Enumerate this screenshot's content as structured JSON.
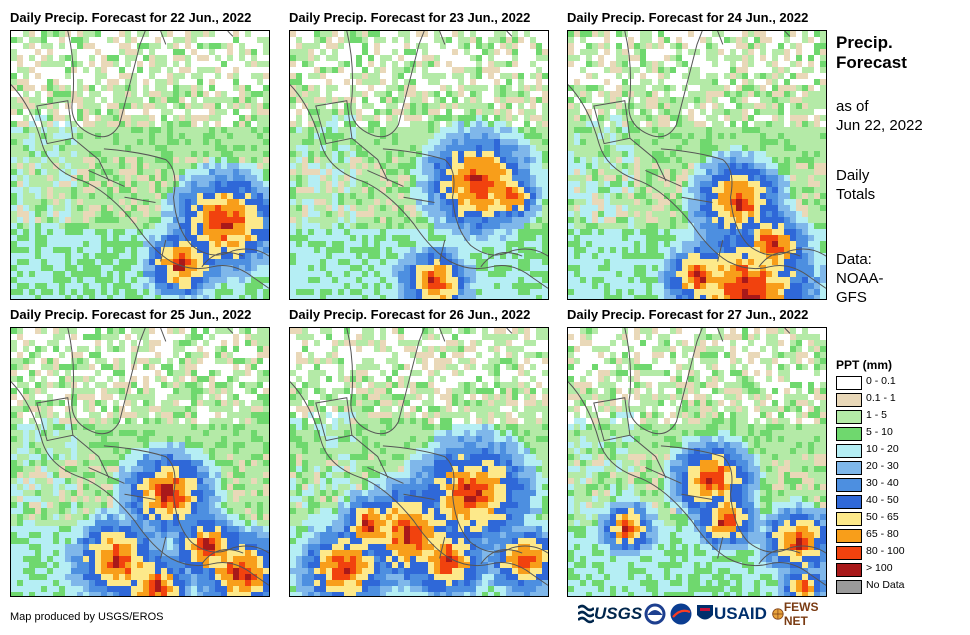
{
  "panels": [
    {
      "title": "Daily Precip. Forecast for 22 Jun., 2022",
      "hot": [
        [
          0.82,
          0.7,
          0.12
        ],
        [
          0.65,
          0.85,
          0.08
        ]
      ]
    },
    {
      "title": "Daily Precip. Forecast for 23 Jun., 2022",
      "hot": [
        [
          0.72,
          0.55,
          0.12
        ],
        [
          0.55,
          0.92,
          0.08
        ],
        [
          0.85,
          0.6,
          0.06
        ]
      ]
    },
    {
      "title": "Daily Precip. Forecast for 24 Jun., 2022",
      "hot": [
        [
          0.65,
          0.62,
          0.1
        ],
        [
          0.68,
          0.95,
          0.16
        ],
        [
          0.5,
          0.9,
          0.08
        ],
        [
          0.78,
          0.78,
          0.08
        ]
      ]
    },
    {
      "title": "Daily Precip. Forecast for 25 Jun., 2022",
      "hot": [
        [
          0.6,
          0.6,
          0.1
        ],
        [
          0.4,
          0.85,
          0.1
        ],
        [
          0.88,
          0.9,
          0.1
        ],
        [
          0.55,
          0.95,
          0.08
        ],
        [
          0.75,
          0.8,
          0.08
        ]
      ]
    },
    {
      "title": "Daily Precip. Forecast for 26 Jun., 2022",
      "hot": [
        [
          0.7,
          0.6,
          0.13
        ],
        [
          0.45,
          0.75,
          0.12
        ],
        [
          0.2,
          0.88,
          0.1
        ],
        [
          0.9,
          0.85,
          0.08
        ],
        [
          0.3,
          0.72,
          0.07
        ],
        [
          0.6,
          0.85,
          0.09
        ]
      ]
    },
    {
      "title": "Daily Precip. Forecast for 27 Jun., 2022",
      "hot": [
        [
          0.55,
          0.55,
          0.09
        ],
        [
          0.88,
          0.78,
          0.08
        ],
        [
          0.22,
          0.73,
          0.06
        ],
        [
          0.6,
          0.7,
          0.07
        ],
        [
          0.9,
          0.95,
          0.05
        ]
      ]
    }
  ],
  "side": {
    "title_line1": "Precip.",
    "title_line2": "Forecast",
    "asof_line1": "as of",
    "asof_line2": "Jun 22, 2022",
    "totals_line1": "Daily",
    "totals_line2": "Totals",
    "data_line1": "Data:",
    "data_line2": "NOAA-",
    "data_line3": "GFS"
  },
  "legend": {
    "title": "PPT (mm)",
    "items": [
      {
        "label": "0 - 0.1",
        "color": "#ffffff"
      },
      {
        "label": "0.1 - 1",
        "color": "#e9d8b8"
      },
      {
        "label": "1 - 5",
        "color": "#b4eaa7"
      },
      {
        "label": "5 - 10",
        "color": "#6fd86e"
      },
      {
        "label": "10 - 20",
        "color": "#b5eef4"
      },
      {
        "label": "20 - 30",
        "color": "#7fb7ea"
      },
      {
        "label": "30 - 40",
        "color": "#4d8fe0"
      },
      {
        "label": "40 - 50",
        "color": "#2f68d8"
      },
      {
        "label": "50 - 65",
        "color": "#fde98a"
      },
      {
        "label": "65 - 80",
        "color": "#f89e1a"
      },
      {
        "label": "80 - 100",
        "color": "#f1420e"
      },
      {
        "label": "> 100",
        "color": "#a8191a"
      },
      {
        "label": "No Data",
        "color": "#9a9a9a"
      }
    ]
  },
  "credit": "Map produced by USGS/EROS",
  "logos": {
    "usgs": "USGS",
    "usaid": "USAID",
    "fews": "FEWS NET"
  }
}
